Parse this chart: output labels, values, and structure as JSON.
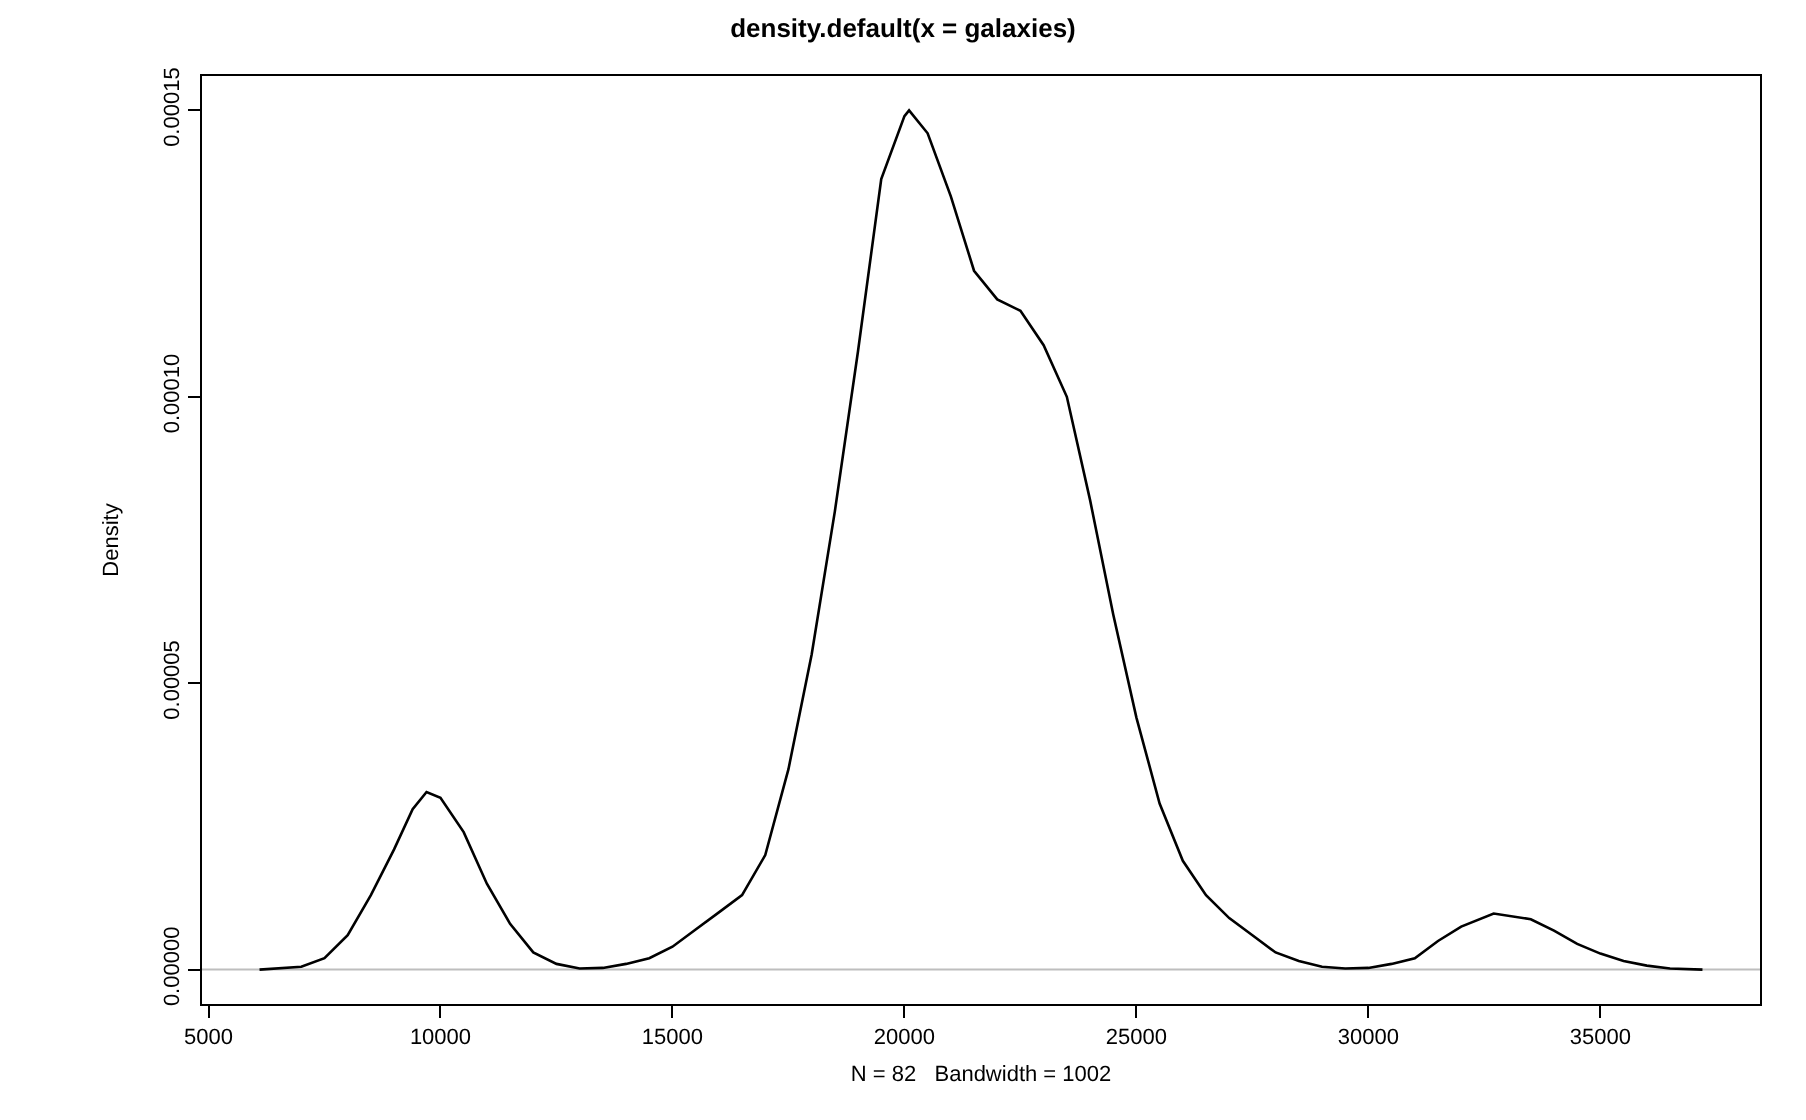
{
  "chart_data": {
    "type": "line",
    "title": "density.default(x = galaxies)",
    "xlabel": "N = 82   Bandwidth = 1002",
    "ylabel": "Density",
    "x": [
      6100,
      7000,
      7500,
      8000,
      8500,
      9000,
      9400,
      9700,
      10000,
      10500,
      11000,
      11500,
      12000,
      12500,
      13000,
      13500,
      14000,
      14500,
      15000,
      15500,
      16000,
      16500,
      17000,
      17500,
      18000,
      18500,
      19000,
      19500,
      20000,
      20100,
      20500,
      21000,
      21500,
      22000,
      22500,
      23000,
      23500,
      24000,
      24500,
      25000,
      25500,
      26000,
      26500,
      27000,
      27500,
      28000,
      28500,
      29000,
      29500,
      30000,
      30500,
      31000,
      31500,
      32000,
      32700,
      33500,
      34000,
      34500,
      35000,
      35500,
      36000,
      36500,
      37200
    ],
    "series": [
      {
        "color": "#000000",
        "values": [
          0,
          5e-07,
          2e-06,
          6e-06,
          1.3e-05,
          2.1e-05,
          2.8e-05,
          3.1e-05,
          3e-05,
          2.4e-05,
          1.5e-05,
          8e-06,
          3e-06,
          1e-06,
          2e-07,
          3e-07,
          1e-06,
          2e-06,
          4e-06,
          7e-06,
          1e-05,
          1.3e-05,
          2e-05,
          3.5e-05,
          5.5e-05,
          8e-05,
          0.000108,
          0.000138,
          0.000149,
          0.00015,
          0.000146,
          0.000135,
          0.000122,
          0.000117,
          0.000115,
          0.000109,
          0.0001,
          8.2e-05,
          6.2e-05,
          4.4e-05,
          2.9e-05,
          1.9e-05,
          1.3e-05,
          9e-06,
          6e-06,
          3e-06,
          1.5e-06,
          5e-07,
          2e-07,
          3e-07,
          1e-06,
          2e-06,
          5e-06,
          7.5e-06,
          9.8e-06,
          8.8e-06,
          6.8e-06,
          4.5e-06,
          2.8e-06,
          1.5e-06,
          7e-07,
          2e-07,
          0
        ]
      }
    ],
    "xlim": [
      4860,
      38440
    ],
    "xticks": [
      5000,
      10000,
      15000,
      20000,
      25000,
      30000,
      35000
    ],
    "ylim": [
      -6e-06,
      0.000156
    ],
    "yticks": [
      {
        "value": 0,
        "label": "0.00000"
      },
      {
        "value": 5e-05,
        "label": "0.00005"
      },
      {
        "value": 0.0001,
        "label": "0.00010"
      },
      {
        "value": 0.00015,
        "label": "0.00015"
      }
    ],
    "ref_lines": [
      {
        "axis": "y",
        "value": 0,
        "color": "#bebebe"
      }
    ],
    "marker": "none",
    "line_style": "solid"
  }
}
